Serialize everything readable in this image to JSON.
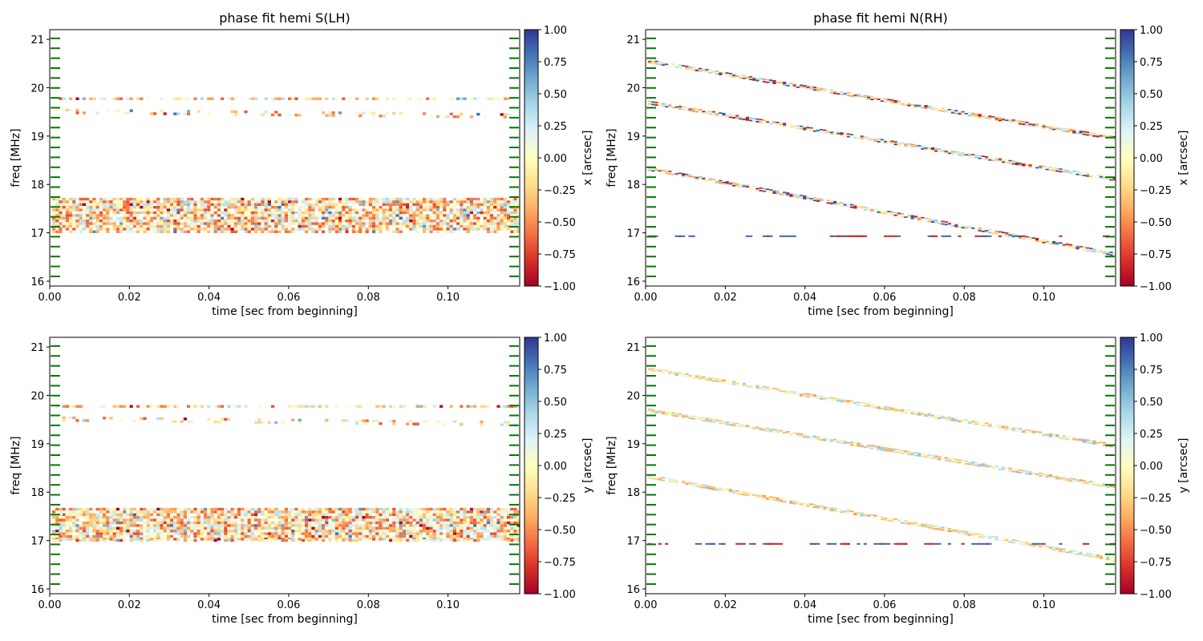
{
  "chart_data": [
    {
      "type": "heatmap",
      "title": "phase fit  hemi S(LH)",
      "xlabel": "time [sec from beginning]",
      "ylabel": "freq [MHz]",
      "colorbar_label": "x [arcsec]",
      "xlim": [
        0,
        0.118
      ],
      "ylim": [
        15.9,
        21.2
      ],
      "xticks": [
        "0.00",
        "0.02",
        "0.04",
        "0.06",
        "0.08",
        "0.10"
      ],
      "yticks": [
        "16",
        "17",
        "18",
        "19",
        "20",
        "21"
      ],
      "clim": [
        -1,
        1
      ],
      "cticks": [
        "1.00",
        "0.75",
        "0.50",
        "0.25",
        "0.00",
        "−0.25",
        "−0.50",
        "−0.75",
        "−1.00"
      ],
      "colormap": "RdYlBu",
      "channel_markers": "green dashes at both edges",
      "features": [
        {
          "kind": "band",
          "f_start": 17.4,
          "f_end": 17.4,
          "width": 0.65,
          "density": 0.9
        },
        {
          "kind": "band",
          "f_start": 19.77,
          "f_end": 19.77,
          "width": 0.06,
          "density": 0.55
        },
        {
          "kind": "band",
          "f_start": 19.5,
          "f_end": 19.4,
          "width": 0.14,
          "density": 0.25
        },
        {
          "kind": "band",
          "f_start": 17.02,
          "f_end": 17.02,
          "width": 0.06,
          "density": 0.55
        }
      ]
    },
    {
      "type": "heatmap",
      "title": "phase fit  hemi N(RH)",
      "xlabel": "time [sec from beginning]",
      "ylabel": "freq [MHz]",
      "colorbar_label": "x [arcsec]",
      "xlim": [
        0,
        0.118
      ],
      "ylim": [
        15.9,
        21.2
      ],
      "xticks": [
        "0.00",
        "0.02",
        "0.04",
        "0.06",
        "0.08",
        "0.10"
      ],
      "yticks": [
        "16",
        "17",
        "18",
        "19",
        "20",
        "21"
      ],
      "clim": [
        -1,
        1
      ],
      "cticks": [
        "1.00",
        "0.75",
        "0.50",
        "0.25",
        "0.00",
        "−0.25",
        "−0.50",
        "−0.75",
        "−1.00"
      ],
      "colormap": "RdYlBu",
      "channel_markers": "green dashes at both edges",
      "features": [
        {
          "kind": "track",
          "f_start": 20.55,
          "f_end": 18.95
        },
        {
          "kind": "track",
          "f_start": 19.7,
          "f_end": 18.1
        },
        {
          "kind": "track",
          "f_start": 18.33,
          "f_end": 16.55
        },
        {
          "kind": "line",
          "f_start": 16.93,
          "f_end": 16.93
        }
      ]
    },
    {
      "type": "heatmap",
      "title": "",
      "xlabel": "time [sec from beginning]",
      "ylabel": "freq [MHz]",
      "colorbar_label": "y [arcsec]",
      "xlim": [
        0,
        0.118
      ],
      "ylim": [
        15.9,
        21.2
      ],
      "xticks": [
        "0.00",
        "0.02",
        "0.04",
        "0.06",
        "0.08",
        "0.10"
      ],
      "yticks": [
        "16",
        "17",
        "18",
        "19",
        "20",
        "21"
      ],
      "clim": [
        -1,
        1
      ],
      "cticks": [
        "1.00",
        "0.75",
        "0.50",
        "0.25",
        "0.00",
        "−0.25",
        "−0.50",
        "−0.75",
        "−1.00"
      ],
      "colormap": "RdYlBu",
      "channel_markers": "green dashes at both edges",
      "features": [
        {
          "kind": "band",
          "f_start": 17.35,
          "f_end": 17.35,
          "width": 0.65,
          "density": 0.9
        },
        {
          "kind": "band",
          "f_start": 19.77,
          "f_end": 19.77,
          "width": 0.06,
          "density": 0.55
        },
        {
          "kind": "band",
          "f_start": 19.5,
          "f_end": 19.4,
          "width": 0.14,
          "density": 0.25
        },
        {
          "kind": "band",
          "f_start": 17.0,
          "f_end": 17.0,
          "width": 0.06,
          "density": 0.55
        }
      ]
    },
    {
      "type": "heatmap",
      "title": "",
      "xlabel": "time [sec from beginning]",
      "ylabel": "freq [MHz]",
      "colorbar_label": "y [arcsec]",
      "xlim": [
        0,
        0.118
      ],
      "ylim": [
        15.9,
        21.2
      ],
      "xticks": [
        "0.00",
        "0.02",
        "0.04",
        "0.06",
        "0.08",
        "0.10"
      ],
      "yticks": [
        "16",
        "17",
        "18",
        "19",
        "20",
        "21"
      ],
      "clim": [
        -1,
        1
      ],
      "cticks": [
        "1.00",
        "0.75",
        "0.50",
        "0.25",
        "0.00",
        "−0.25",
        "−0.50",
        "−0.75",
        "−1.00"
      ],
      "colormap": "RdYlBu",
      "channel_markers": "green dashes at both edges",
      "features": [
        {
          "kind": "track",
          "f_start": 20.55,
          "f_end": 18.95
        },
        {
          "kind": "track",
          "f_start": 19.7,
          "f_end": 18.1
        },
        {
          "kind": "track",
          "f_start": 18.33,
          "f_end": 16.6
        },
        {
          "kind": "line",
          "f_start": 16.93,
          "f_end": 16.93
        }
      ]
    }
  ]
}
